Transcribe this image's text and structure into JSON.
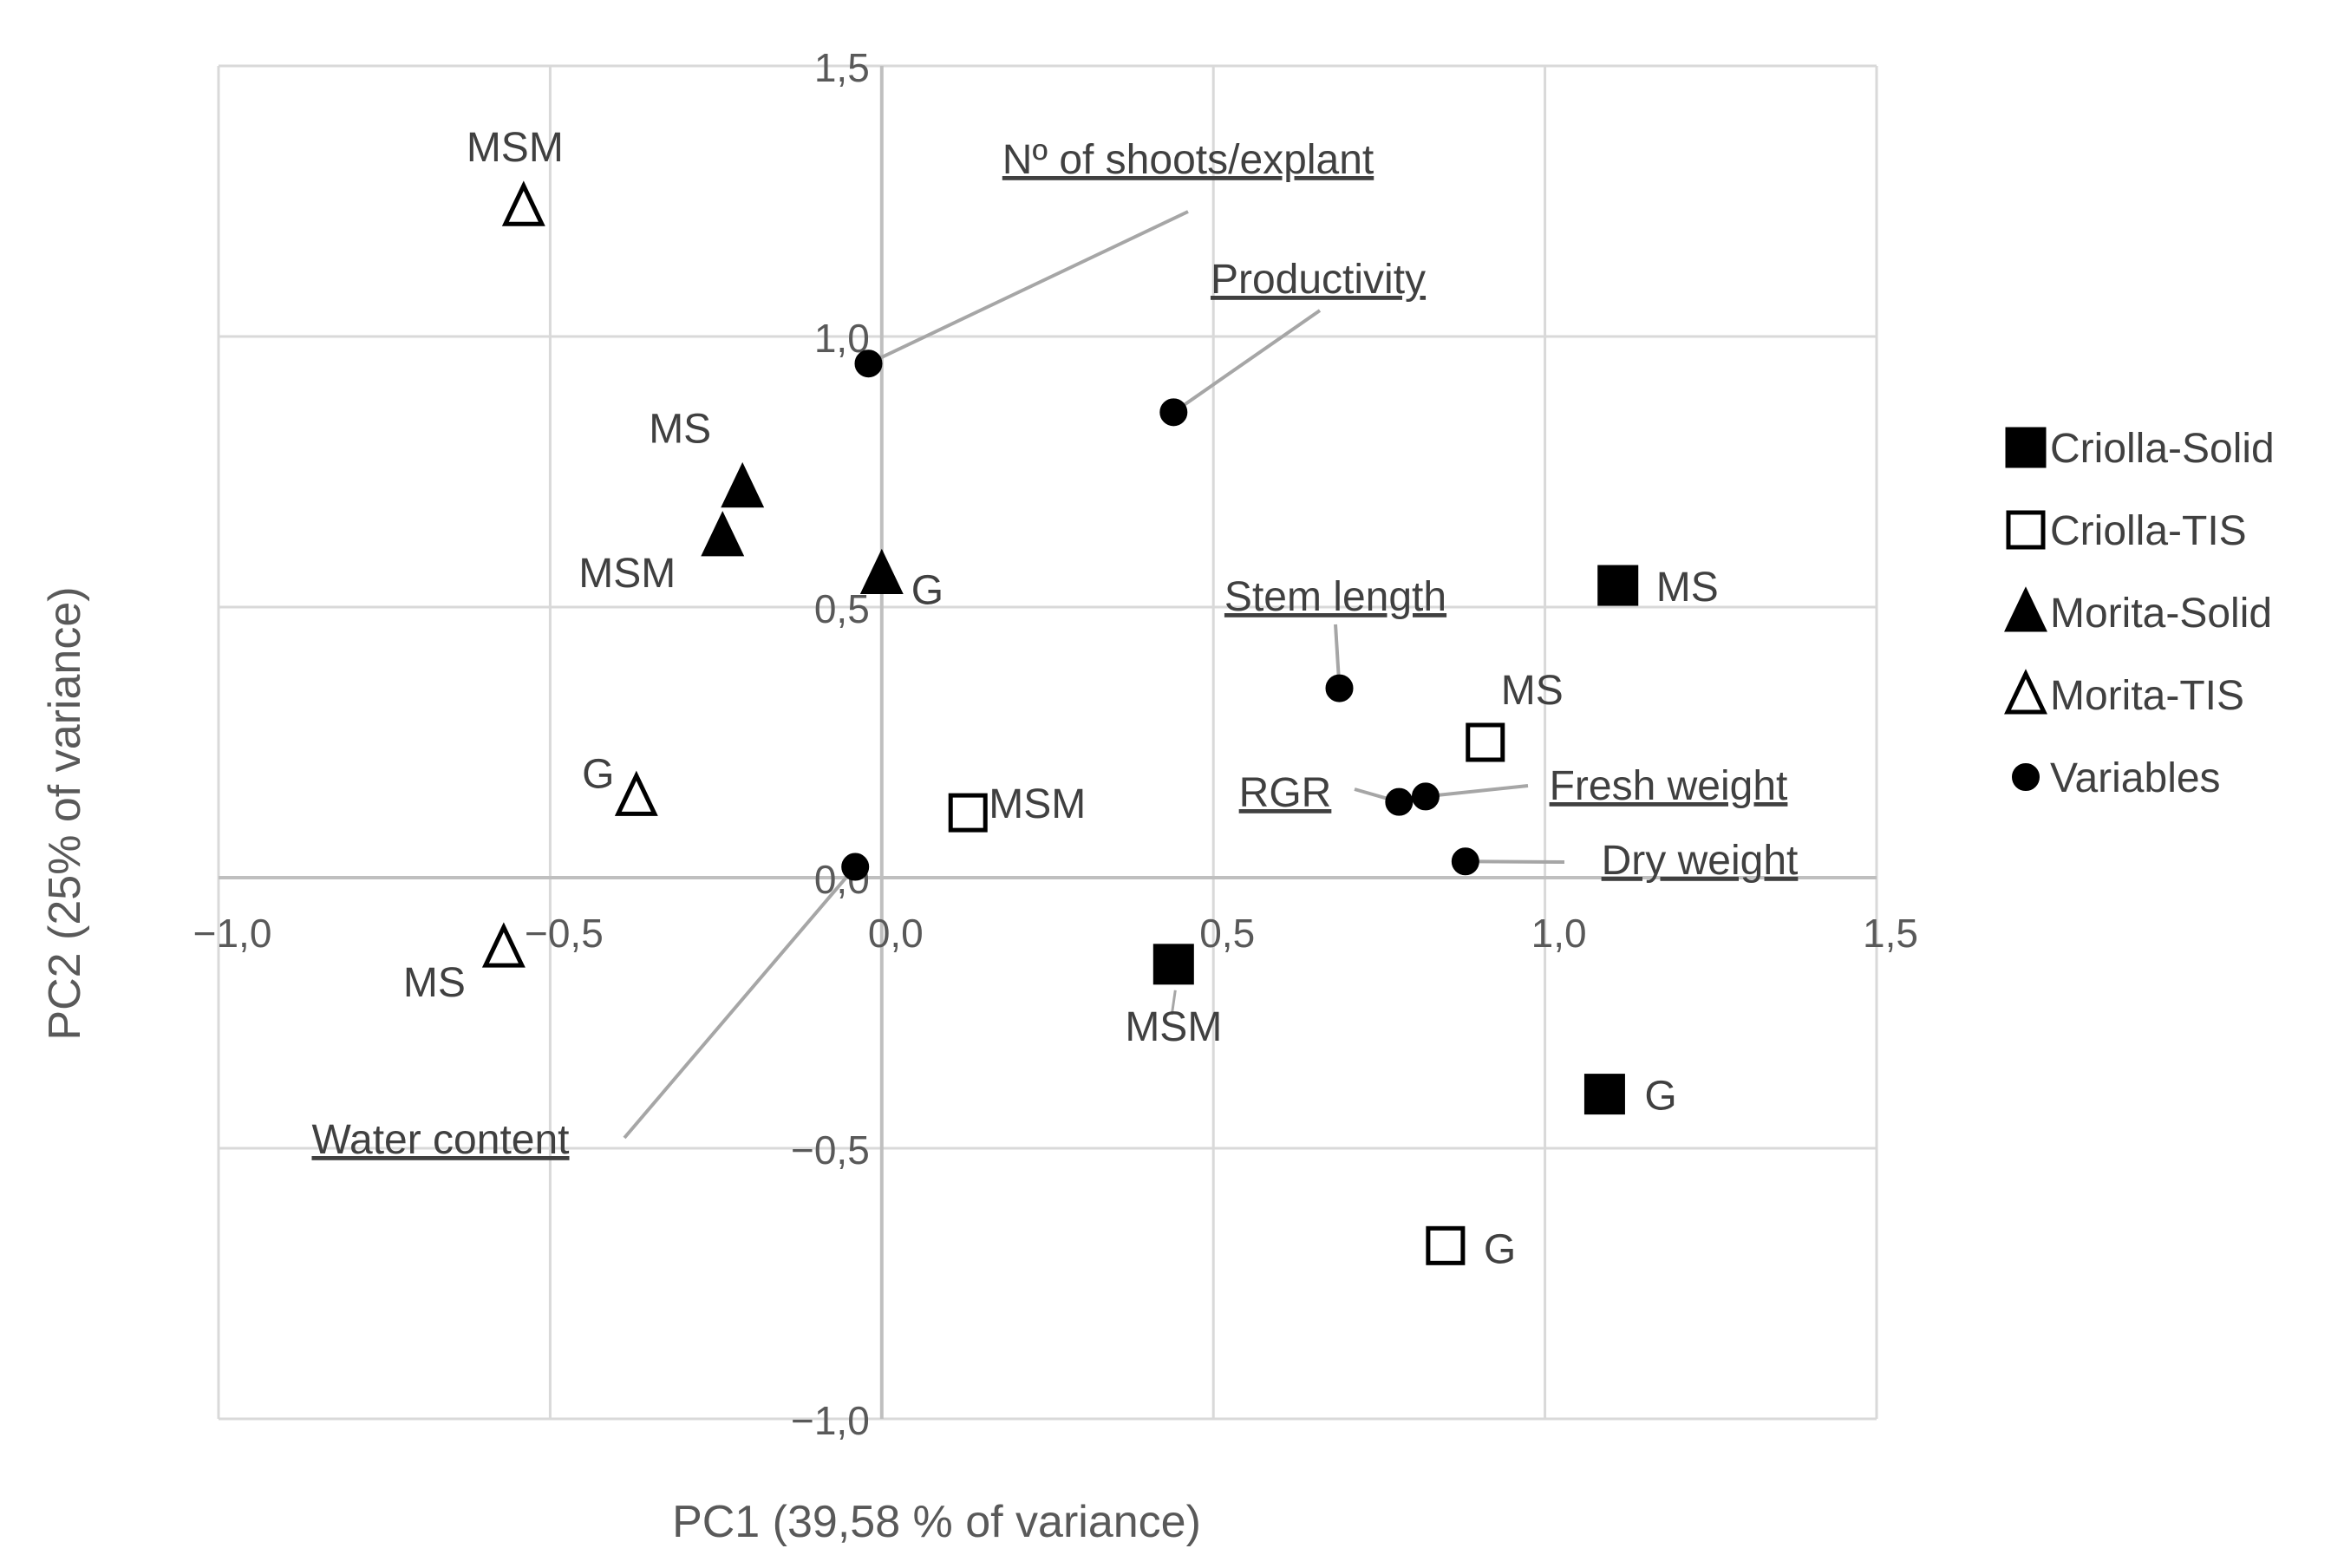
{
  "chart_data": {
    "type": "scatter",
    "title": "",
    "xlabel": "PC1 (39,58 % of variance)",
    "ylabel": "PC2 (25% of variance)",
    "xlim": [
      -1.0,
      1.5
    ],
    "ylim": [
      -1.0,
      1.5
    ],
    "x_ticks": [
      {
        "value": -1.0,
        "label": "−1,0"
      },
      {
        "value": -0.5,
        "label": "−0,5"
      },
      {
        "value": 0.0,
        "label": "0,0"
      },
      {
        "value": 0.5,
        "label": "0,5"
      },
      {
        "value": 1.0,
        "label": "1,0"
      },
      {
        "value": 1.5,
        "label": "1,5"
      }
    ],
    "y_ticks": [
      {
        "value": 1.5,
        "label": "1,5"
      },
      {
        "value": 1.0,
        "label": "1,0"
      },
      {
        "value": 0.5,
        "label": "0,5"
      },
      {
        "value": 0.0,
        "label": "0,0"
      },
      {
        "value": -0.5,
        "label": "−0,5"
      },
      {
        "value": -1.0,
        "label": "−1,0"
      }
    ],
    "grid": true,
    "legend_position": "right",
    "series": [
      {
        "name": "Criolla-Solid",
        "marker": "square",
        "filled": true,
        "points": [
          {
            "x": 1.11,
            "y": 0.54,
            "label": "MS"
          },
          {
            "x": 0.44,
            "y": -0.16,
            "label": "MSM"
          },
          {
            "x": 1.09,
            "y": -0.4,
            "label": "G"
          }
        ]
      },
      {
        "name": "Criolla-TIS",
        "marker": "square",
        "filled": false,
        "points": [
          {
            "x": 0.91,
            "y": 0.25,
            "label": "MS"
          },
          {
            "x": 0.13,
            "y": 0.12,
            "label": "MSM"
          },
          {
            "x": 0.85,
            "y": -0.68,
            "label": "G"
          }
        ]
      },
      {
        "name": "Morita-Solid",
        "marker": "triangle",
        "filled": true,
        "points": [
          {
            "x": -0.21,
            "y": 0.72,
            "label": "MS"
          },
          {
            "x": -0.24,
            "y": 0.63,
            "label": "MSM"
          },
          {
            "x": 0.0,
            "y": 0.56,
            "label": "G"
          }
        ]
      },
      {
        "name": "Morita-TIS",
        "marker": "triangle",
        "filled": false,
        "points": [
          {
            "x": -0.54,
            "y": 1.24,
            "label": "MSM"
          },
          {
            "x": -0.37,
            "y": 0.15,
            "label": "G"
          },
          {
            "x": -0.57,
            "y": -0.13,
            "label": "MS"
          }
        ]
      },
      {
        "name": "Variables",
        "marker": "circle",
        "filled": true,
        "points": [
          {
            "x": -0.02,
            "y": 0.95,
            "label": "Nº of shoots/explant"
          },
          {
            "x": 0.44,
            "y": 0.86,
            "label": "Productivity"
          },
          {
            "x": 0.69,
            "y": 0.35,
            "label": "Stem length"
          },
          {
            "x": 0.78,
            "y": 0.14,
            "label": "RGR"
          },
          {
            "x": 0.82,
            "y": 0.15,
            "label": "Fresh weight"
          },
          {
            "x": 0.88,
            "y": 0.03,
            "label": "Dry weight"
          },
          {
            "x": -0.04,
            "y": 0.02,
            "label": "Water content"
          }
        ]
      }
    ]
  },
  "colors": {
    "marker": "#000000",
    "grid": "#d9d9d9",
    "axis": "#bfbfbf",
    "leader": "#a6a6a6",
    "text": "#404040"
  }
}
